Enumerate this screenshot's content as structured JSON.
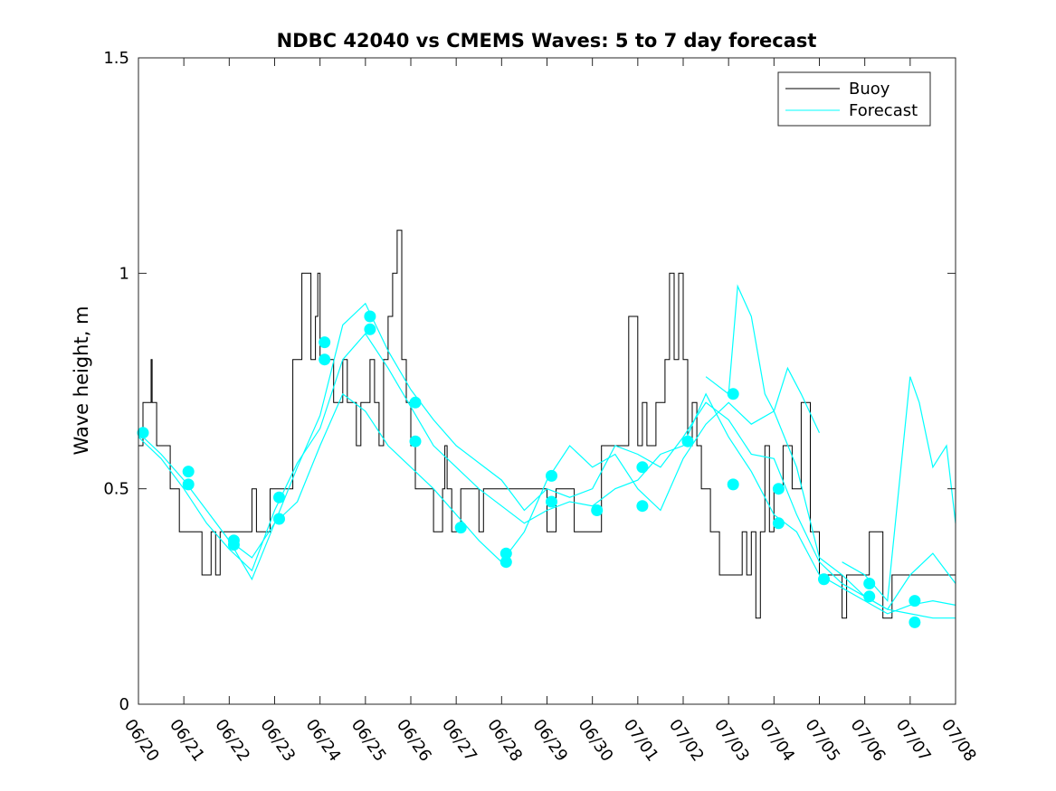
{
  "chart_data": {
    "type": "line",
    "title": "NDBC 42040 vs CMEMS Waves: 5 to 7 day forecast",
    "xlabel": "",
    "ylabel": "Wave height, m",
    "xlim": [
      "06/20",
      "07/08"
    ],
    "ylim": [
      0,
      1.5
    ],
    "x_tick_labels": [
      "06/20",
      "06/21",
      "06/22",
      "06/23",
      "06/24",
      "06/25",
      "06/26",
      "06/27",
      "06/28",
      "06/29",
      "06/30",
      "07/01",
      "07/02",
      "07/03",
      "07/04",
      "07/05",
      "07/06",
      "07/07",
      "07/08"
    ],
    "y_ticks": [
      0,
      0.5,
      1,
      1.5
    ],
    "y_tick_labels": [
      "0",
      "0.5",
      "1",
      "1.5"
    ],
    "grid": false,
    "legend": {
      "position": "top-right",
      "entries": [
        "Buoy",
        "Forecast"
      ]
    },
    "colors": {
      "buoy": "#000000",
      "forecast": "#00ffff",
      "axes": "#262626"
    },
    "series": [
      {
        "name": "Buoy",
        "x": [
          0.0,
          0.1,
          0.2,
          0.28,
          0.3,
          0.4,
          0.5,
          0.7,
          0.72,
          0.8,
          0.9,
          1.0,
          1.1,
          1.2,
          1.4,
          1.5,
          1.6,
          1.7,
          1.8,
          1.9,
          2.0,
          2.2,
          2.3,
          2.5,
          2.6,
          2.7,
          2.8,
          2.9,
          3.0,
          3.2,
          3.4,
          3.6,
          3.8,
          3.9,
          3.95,
          4.0,
          4.1,
          4.2,
          4.3,
          4.4,
          4.5,
          4.6,
          4.7,
          4.8,
          4.9,
          5.0,
          5.1,
          5.2,
          5.3,
          5.4,
          5.5,
          5.6,
          5.7,
          5.8,
          5.9,
          6.0,
          6.1,
          6.2,
          6.3,
          6.4,
          6.5,
          6.6,
          6.7,
          6.75,
          6.8,
          6.9,
          7.0,
          7.1,
          7.2,
          7.4,
          7.5,
          7.6,
          7.8,
          8.0,
          8.2,
          8.4,
          8.6,
          8.8,
          9.0,
          9.2,
          9.4,
          9.6,
          9.8,
          10.0,
          10.2,
          10.4,
          10.6,
          10.7,
          10.8,
          11.0,
          11.1,
          11.2,
          11.4,
          11.6,
          11.7,
          11.8,
          11.9,
          12.0,
          12.1,
          12.2,
          12.3,
          12.4,
          12.5,
          12.6,
          12.7,
          12.8,
          12.9,
          13.0,
          13.1,
          13.2,
          13.3,
          13.4,
          13.5,
          13.6,
          13.7,
          13.8,
          13.9,
          14.0,
          14.2,
          14.4,
          14.6,
          14.8,
          15.0,
          15.1,
          15.2,
          15.4,
          15.5,
          15.6,
          15.8,
          16.0,
          16.1,
          16.2,
          16.4,
          16.6,
          16.8,
          17.0,
          17.1,
          17.2,
          17.4,
          17.6,
          17.8,
          18.0
        ],
        "values": [
          0.6,
          0.7,
          0.7,
          0.8,
          0.7,
          0.6,
          0.6,
          0.5,
          0.5,
          0.5,
          0.4,
          0.4,
          0.4,
          0.4,
          0.3,
          0.3,
          0.4,
          0.3,
          0.4,
          0.4,
          0.4,
          0.4,
          0.4,
          0.5,
          0.4,
          0.4,
          0.4,
          0.5,
          0.5,
          0.5,
          0.8,
          1.0,
          0.8,
          0.9,
          1.0,
          0.8,
          0.8,
          0.8,
          0.7,
          0.7,
          0.8,
          0.7,
          0.7,
          0.6,
          0.7,
          0.7,
          0.8,
          0.7,
          0.6,
          0.8,
          0.9,
          1.0,
          1.1,
          0.8,
          0.7,
          0.6,
          0.5,
          0.5,
          0.5,
          0.5,
          0.4,
          0.4,
          0.5,
          0.6,
          0.5,
          0.4,
          0.4,
          0.5,
          0.5,
          0.5,
          0.4,
          0.5,
          0.5,
          0.5,
          0.5,
          0.5,
          0.5,
          0.5,
          0.4,
          0.5,
          0.5,
          0.4,
          0.4,
          0.4,
          0.6,
          0.6,
          0.6,
          0.6,
          0.9,
          0.6,
          0.7,
          0.6,
          0.7,
          0.8,
          1.0,
          0.8,
          1.0,
          0.8,
          0.6,
          0.7,
          0.6,
          0.5,
          0.5,
          0.4,
          0.4,
          0.3,
          0.3,
          0.3,
          0.3,
          0.3,
          0.4,
          0.3,
          0.4,
          0.2,
          0.4,
          0.6,
          0.4,
          0.5,
          0.6,
          0.5,
          0.7,
          0.4,
          0.3,
          0.3,
          0.3,
          0.3,
          0.2,
          0.3,
          0.3,
          0.3,
          0.4,
          0.4,
          0.2,
          0.3,
          0.3,
          0.3,
          0.3,
          0.3,
          0.3,
          0.3,
          0.3,
          0.3
        ]
      },
      {
        "name": "Forecast",
        "segments": [
          {
            "x": [
              0.0,
              0.5,
              1.0,
              1.5,
              2.0,
              2.5,
              3.0,
              3.5,
              4.0,
              4.5,
              5.0,
              5.5,
              6.0,
              6.5,
              7.0,
              7.5,
              8.0,
              8.5,
              9.0,
              9.5,
              10.0,
              10.5,
              11.0,
              11.5,
              12.0,
              12.5,
              13.0,
              13.5,
              14.0,
              14.5,
              15.0,
              15.5,
              16.0,
              16.5,
              17.0,
              17.5,
              18.0
            ],
            "y": [
              0.63,
              0.58,
              0.52,
              0.45,
              0.38,
              0.34,
              0.42,
              0.55,
              0.67,
              0.88,
              0.93,
              0.82,
              0.73,
              0.66,
              0.6,
              0.56,
              0.52,
              0.45,
              0.5,
              0.48,
              0.5,
              0.6,
              0.58,
              0.55,
              0.62,
              0.7,
              0.66,
              0.58,
              0.57,
              0.44,
              0.33,
              0.28,
              0.25,
              0.22,
              0.21,
              0.2,
              0.2
            ]
          },
          {
            "x": [
              0.0,
              0.5,
              1.0,
              1.5,
              2.0,
              2.5,
              3.0,
              3.5,
              4.0,
              4.5,
              5.0,
              5.5,
              6.0,
              6.5,
              7.0,
              7.5,
              8.0,
              8.5,
              9.0,
              9.5,
              10.0,
              10.5,
              11.0,
              11.5,
              12.0,
              12.5,
              13.0,
              13.5,
              14.0,
              14.5,
              15.0,
              15.5,
              16.0,
              16.5,
              17.0,
              17.5,
              18.0
            ],
            "y": [
              0.62,
              0.57,
              0.5,
              0.42,
              0.36,
              0.31,
              0.45,
              0.56,
              0.64,
              0.8,
              0.86,
              0.78,
              0.69,
              0.6,
              0.55,
              0.5,
              0.46,
              0.42,
              0.45,
              0.47,
              0.46,
              0.5,
              0.52,
              0.58,
              0.6,
              0.72,
              0.62,
              0.54,
              0.44,
              0.4,
              0.3,
              0.27,
              0.24,
              0.21,
              0.23,
              0.24,
              0.23
            ]
          },
          {
            "x": [
              2.0,
              2.5,
              3.0,
              3.5,
              4.0,
              4.5,
              5.0,
              5.5,
              6.0,
              6.5,
              7.0,
              7.5,
              8.0,
              8.5,
              9.0,
              9.5,
              10.0,
              10.5,
              11.0,
              11.5,
              12.0,
              12.5,
              13.0,
              13.5,
              14.0,
              14.5,
              15.0,
              15.5,
              16.0,
              16.5,
              17.0,
              17.5,
              18.0
            ],
            "y": [
              0.38,
              0.29,
              0.42,
              0.47,
              0.6,
              0.72,
              0.68,
              0.6,
              0.55,
              0.5,
              0.44,
              0.38,
              0.33,
              0.4,
              0.52,
              0.6,
              0.55,
              0.58,
              0.5,
              0.45,
              0.57,
              0.65,
              0.7,
              0.65,
              0.68,
              0.55,
              0.34,
              0.3,
              0.25,
              0.22,
              0.3,
              0.35,
              0.28
            ]
          },
          {
            "x": [
              12.5,
              13.0,
              13.2,
              13.5,
              13.8,
              14.0,
              14.3,
              14.6,
              15.0
            ],
            "y": [
              0.76,
              0.72,
              0.97,
              0.9,
              0.72,
              0.68,
              0.78,
              0.72,
              0.63
            ]
          },
          {
            "x": [
              15.5,
              16.0,
              16.5,
              17.0,
              17.2,
              17.5,
              17.8,
              18.0
            ],
            "y": [
              0.33,
              0.3,
              0.24,
              0.76,
              0.7,
              0.55,
              0.6,
              0.42
            ]
          }
        ],
        "markers": {
          "x": [
            0.1,
            1.1,
            1.1,
            2.1,
            2.1,
            3.1,
            3.1,
            4.1,
            4.1,
            5.1,
            5.1,
            6.1,
            6.1,
            7.1,
            8.1,
            8.1,
            9.1,
            9.1,
            10.1,
            11.1,
            11.1,
            12.1,
            13.1,
            13.1,
            14.1,
            14.1,
            15.1,
            16.1,
            16.1,
            17.1,
            17.1
          ],
          "y": [
            0.63,
            0.54,
            0.51,
            0.38,
            0.37,
            0.48,
            0.43,
            0.84,
            0.8,
            0.9,
            0.87,
            0.7,
            0.61,
            0.41,
            0.35,
            0.33,
            0.53,
            0.47,
            0.45,
            0.55,
            0.46,
            0.61,
            0.72,
            0.51,
            0.5,
            0.42,
            0.29,
            0.28,
            0.25,
            0.24,
            0.19
          ]
        }
      }
    ]
  }
}
